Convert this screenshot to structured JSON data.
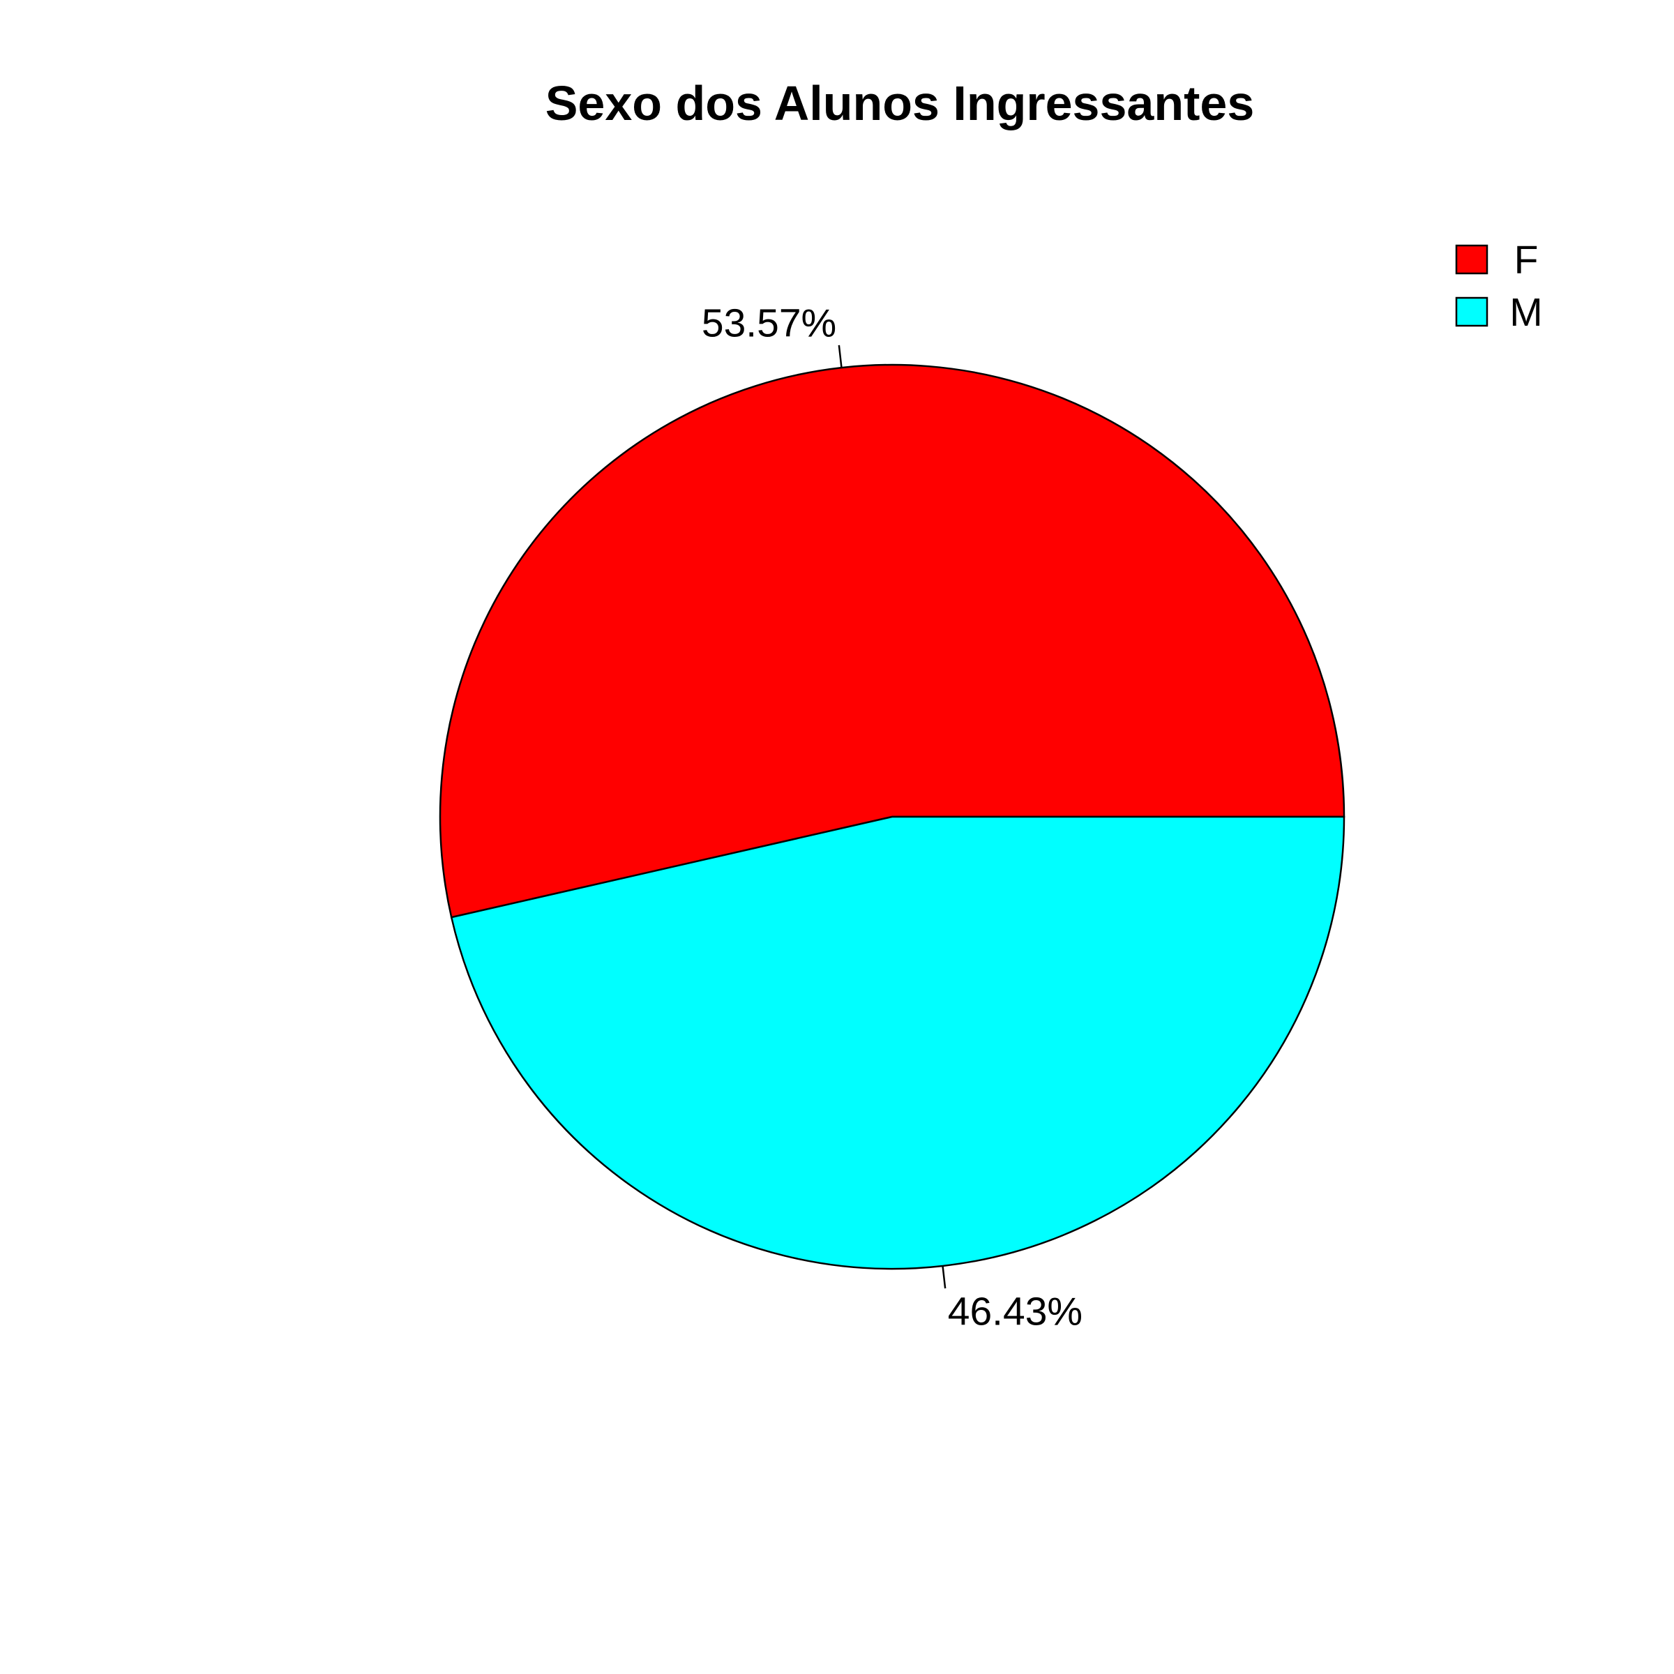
{
  "chart_data": {
    "type": "pie",
    "title": "Sexo dos Alunos Ingressantes",
    "slices": [
      {
        "category": "F",
        "value": 53.57,
        "label": "53.57%",
        "color": "#FF0000"
      },
      {
        "category": "M",
        "value": 46.43,
        "label": "46.43%",
        "color": "#00FFFF"
      }
    ],
    "legend": {
      "position": "top-right",
      "entries": [
        {
          "label": "F",
          "color": "#FF0000"
        },
        {
          "label": "M",
          "color": "#00FFFF"
        }
      ]
    },
    "start": "3 o'clock",
    "direction": "counterclockwise"
  }
}
